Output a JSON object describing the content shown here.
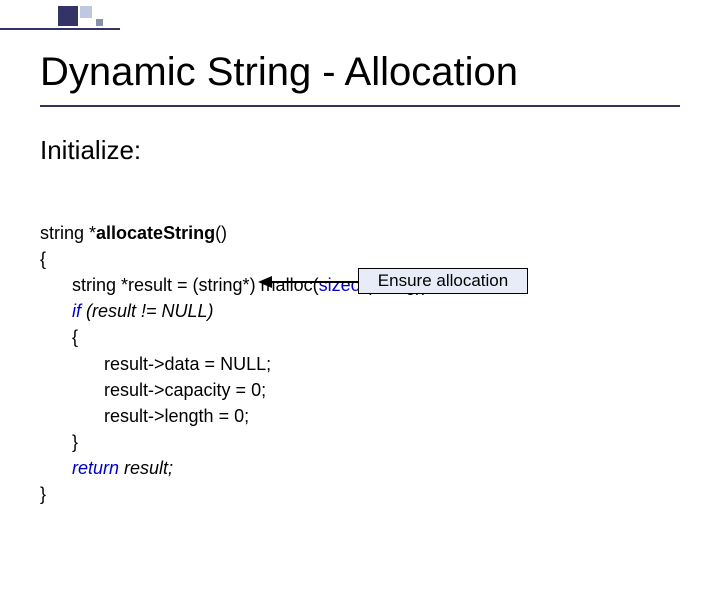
{
  "title": "Dynamic String - Allocation",
  "subtitle": "Initialize:",
  "code": {
    "l1_pre": "string *",
    "l1_bold": "allocateString",
    "l1_post": "()",
    "l2": "{",
    "l3_a": "string *result = (string*) malloc(",
    "l3_kw": "sizeof",
    "l3_b": "(string));",
    "l4_kw": "if",
    "l4_rest": " (result != NULL)",
    "l5": "{",
    "l6": "result->data = NULL;",
    "l7": "result->capacity = 0;",
    "l8": "result->length = 0;",
    "l9": "}",
    "l10_kw": "return",
    "l10_rest": " result;",
    "l11": "}"
  },
  "callout": "Ensure allocation",
  "colors": {
    "keyword": "#0000cc",
    "callout_bg": "#e8ecf8",
    "callout_border": "#000000",
    "divider": "#333355",
    "deco_dark": "#333366"
  },
  "fonts": {
    "title_size_pt": 30,
    "subtitle_size_pt": 20,
    "code_size_pt": 14,
    "callout_size_pt": 13
  }
}
